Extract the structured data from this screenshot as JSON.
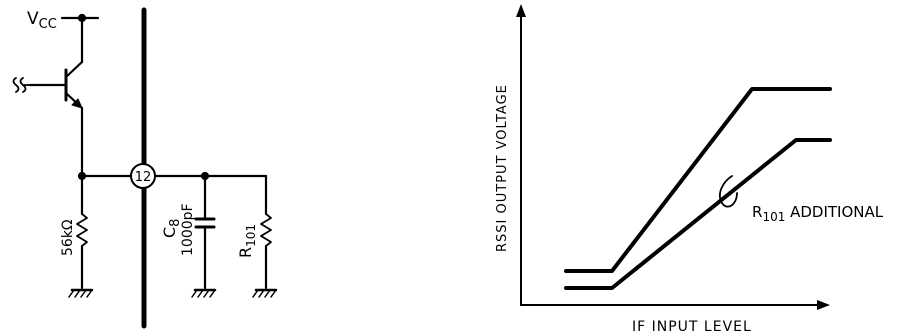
{
  "circuit": {
    "vcc_main": "V",
    "vcc_sub": "CC",
    "pin_number": "12",
    "resistor_value": "56kΩ",
    "cap_name_main": "C",
    "cap_name_sub": "8",
    "cap_value": "1000pF",
    "r101_main": "R",
    "r101_sub": "101"
  },
  "graph": {
    "y_axis_label": "RSSI OUTPUT VOLTAGE",
    "x_axis_label": "IF INPUT LEVEL",
    "curve_label_main": "R",
    "curve_label_sub": "101",
    "curve_label_suffix": " ADDITIONAL"
  }
}
